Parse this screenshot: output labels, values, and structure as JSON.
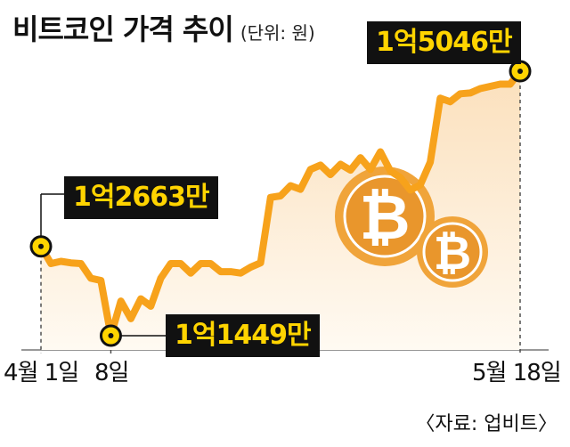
{
  "title": "비트코인 가격 추이",
  "unit": "(단위: 원)",
  "source": "〈자료: 업비트〉",
  "colors": {
    "line": "#f7a21b",
    "area_top": "#fbe0bc",
    "area_bottom": "#fffaf2",
    "coin_outer": "#f0a43a",
    "coin_inner": "#e9962c",
    "callout_bg": "#111111",
    "callout_text": "#ffd400",
    "marker_fill": "#ffd400"
  },
  "icons": [
    "bitcoin-coin-icon",
    "bitcoin-coin-icon"
  ],
  "chart_data": {
    "type": "area",
    "title": "비트코인 가격 추이",
    "unit": "(단위: 원)",
    "x_tick_labels": [
      "4월 1일",
      "8일",
      "5월 18일"
    ],
    "y": [
      126630000,
      124300000,
      124600000,
      124400000,
      124300000,
      122300000,
      122000000,
      114490000,
      119200000,
      116800000,
      119500000,
      118500000,
      122300000,
      124300000,
      124300000,
      123000000,
      124300000,
      124300000,
      123200000,
      123200000,
      123000000,
      123800000,
      124400000,
      133300000,
      133500000,
      134900000,
      134400000,
      137100000,
      137700000,
      136400000,
      137800000,
      137000000,
      138700000,
      137100000,
      139500000,
      136900000,
      136000000,
      134300000,
      135000000,
      138100000,
      146800000,
      146300000,
      147400000,
      147500000,
      148100000,
      148400000,
      148700000,
      148700000,
      150460000
    ],
    "annotations": [
      {
        "label": "1억2663만",
        "index": 0,
        "value": 126630000
      },
      {
        "label": "1억1449만",
        "index": 7,
        "value": 114490000
      },
      {
        "label": "1억5046만",
        "index": 48,
        "value": 150460000
      }
    ]
  }
}
